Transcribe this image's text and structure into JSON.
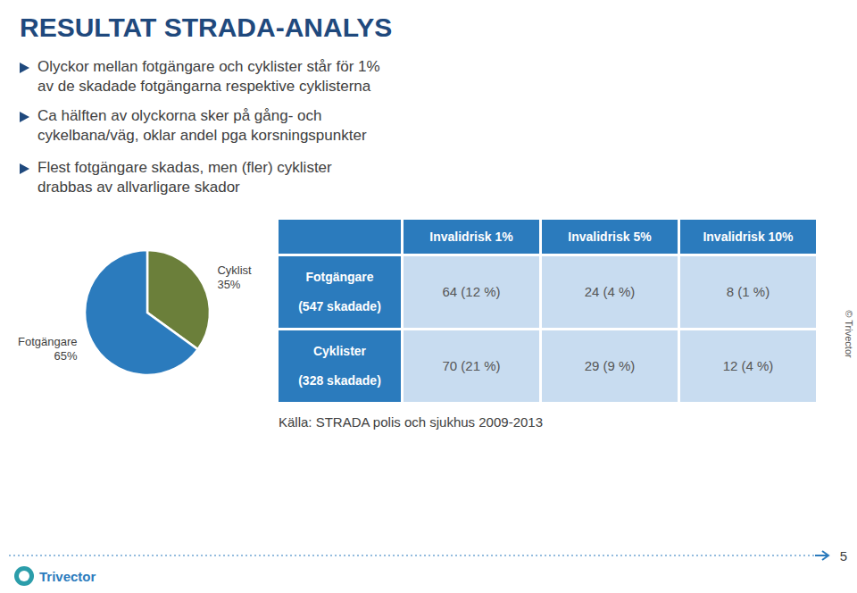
{
  "chart_data": {
    "type": "pie",
    "title": "RESULTAT STRADA-ANALYS",
    "categories": [
      "Cyklist",
      "Fotgängare"
    ],
    "values": [
      35,
      65
    ],
    "value_labels": [
      "35%",
      "65%"
    ],
    "data_labels": true,
    "colors": [
      "#6B7F3A",
      "#2B7BBD"
    ],
    "annotations": [
      "Olyckor mellan fotgängare och cyklister står för 1%\nav de skadade fotgängarna respektive cyklisterna",
      "Ca hälften av olyckorna sker på gång- och\ncykelbana/väg, oklar andel pga korsningspunkter",
      "Flest fotgängare skadas, men (fler) cyklister\ndrabbas av allvarligare skador"
    ],
    "table": {
      "header": [
        "",
        "Invalidrisk 1%",
        "Invalidrisk 5%",
        "Invalidrisk 10%"
      ],
      "rows": [
        [
          "Fotgängare\n\n(547 skadade)",
          "64 (12 %)",
          "24 (4 %)",
          "8 (1 %)"
        ],
        [
          "Cyklister\n\n(328 skadade)",
          "70 (21 %)",
          "29 (9 %)",
          "12 (4 %)"
        ]
      ]
    },
    "source": "Källa: STRADA polis och sjukhus 2009-2013",
    "copyright": "© Trivector",
    "footer": "Trivector",
    "page_number": "5"
  }
}
